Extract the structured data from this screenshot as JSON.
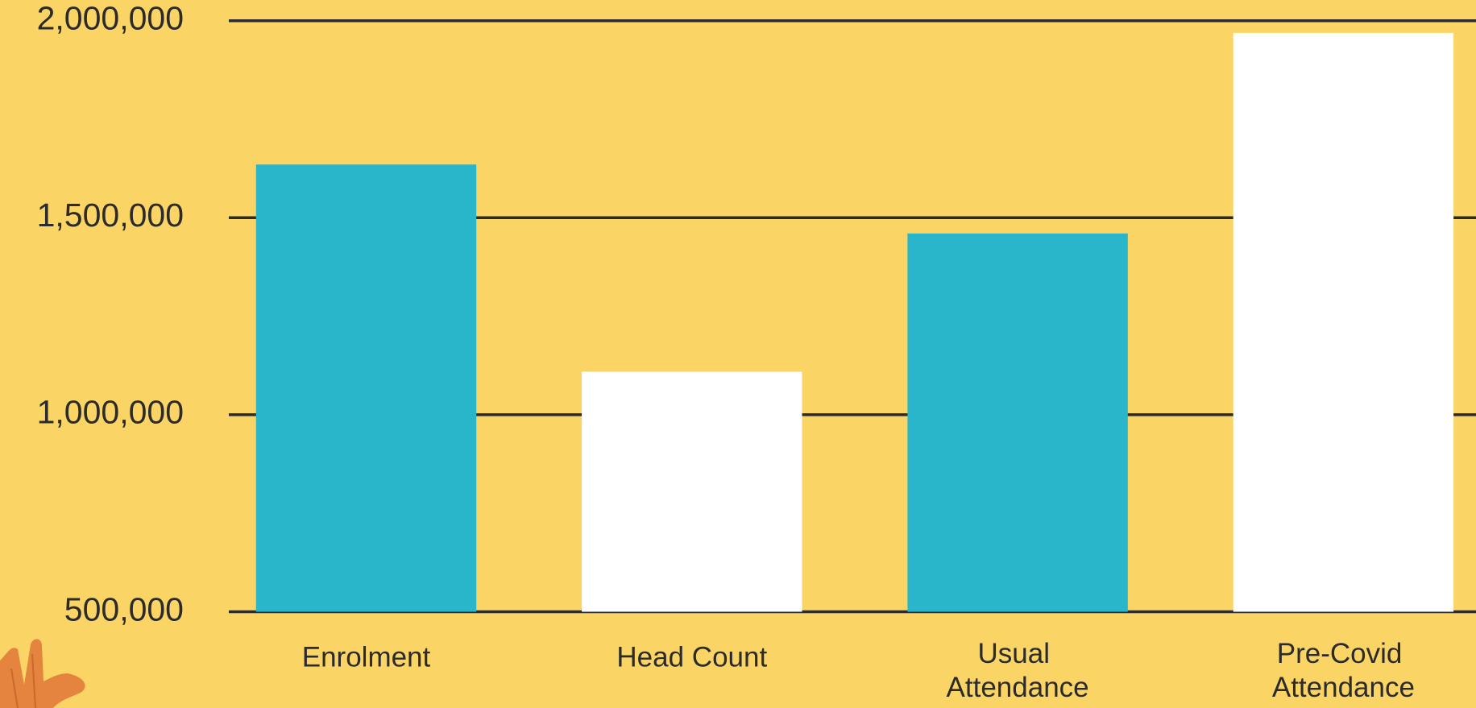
{
  "chart_data": {
    "type": "bar",
    "categories": [
      "Enrolment",
      "Head Count",
      "Usual Attendance",
      "Pre-Covid Attendance"
    ],
    "values": [
      1635000,
      1109000,
      1460000,
      1969000
    ],
    "colors": [
      "#29b5ca",
      "#ffffff",
      "#29b5ca",
      "#ffffff"
    ],
    "ylim": [
      500000,
      2000000
    ],
    "yticks": [
      {
        "value": 500000,
        "label": "500,000"
      },
      {
        "value": 1000000,
        "label": "1,000,000"
      },
      {
        "value": 1500000,
        "label": "1,500,000"
      },
      {
        "value": 2000000,
        "label": "2,000,000"
      }
    ],
    "grid": true
  }
}
